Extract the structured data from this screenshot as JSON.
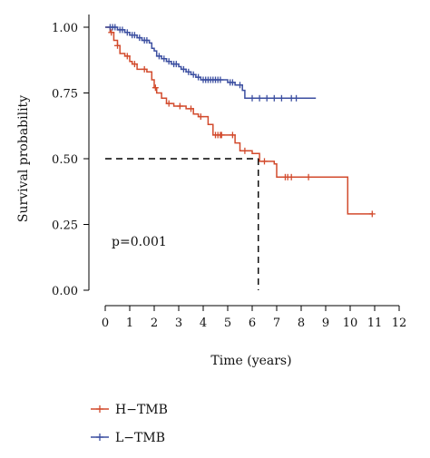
{
  "chart_data": {
    "type": "line",
    "step": true,
    "xlabel": "Time (years)",
    "ylabel": "Survival probability",
    "xlim": [
      0,
      12
    ],
    "ylim": [
      0,
      1
    ],
    "xticks": [
      0,
      1,
      2,
      3,
      4,
      5,
      6,
      7,
      8,
      9,
      10,
      11,
      12
    ],
    "yticks": [
      "0.00",
      "0.25",
      "0.50",
      "0.75",
      "1.00"
    ],
    "grid": false,
    "legend_position": "bottom-left",
    "annotation": "p=0.001",
    "median_reference": {
      "y": 0.5,
      "x": 6.25
    },
    "series": [
      {
        "name": "H−TMB",
        "color": "#d24a2c",
        "steps": [
          [
            0,
            1.0
          ],
          [
            0.2,
            0.98
          ],
          [
            0.35,
            0.95
          ],
          [
            0.5,
            0.93
          ],
          [
            0.6,
            0.9
          ],
          [
            0.8,
            0.89
          ],
          [
            1.0,
            0.87
          ],
          [
            1.1,
            0.86
          ],
          [
            1.3,
            0.84
          ],
          [
            1.7,
            0.83
          ],
          [
            1.9,
            0.8
          ],
          [
            2.0,
            0.77
          ],
          [
            2.1,
            0.75
          ],
          [
            2.3,
            0.73
          ],
          [
            2.5,
            0.71
          ],
          [
            2.8,
            0.7
          ],
          [
            3.3,
            0.69
          ],
          [
            3.6,
            0.67
          ],
          [
            3.8,
            0.66
          ],
          [
            4.2,
            0.63
          ],
          [
            4.4,
            0.59
          ],
          [
            5.0,
            0.59
          ],
          [
            5.3,
            0.56
          ],
          [
            5.5,
            0.53
          ],
          [
            6.0,
            0.52
          ],
          [
            6.3,
            0.49
          ],
          [
            6.9,
            0.48
          ],
          [
            7.0,
            0.43
          ],
          [
            8.0,
            0.43
          ],
          [
            9.9,
            0.29
          ],
          [
            10.9,
            0.29
          ]
        ],
        "censor_x": [
          0.25,
          0.5,
          0.9,
          1.2,
          1.6,
          2.05,
          2.6,
          3.05,
          3.5,
          3.9,
          4.5,
          4.6,
          4.7,
          4.75,
          5.2,
          5.7,
          6.5,
          7.35,
          7.45,
          7.6,
          8.3,
          10.9
        ]
      },
      {
        "name": "L−TMB",
        "color": "#3b4ea0",
        "steps": [
          [
            0,
            1.0
          ],
          [
            0.5,
            0.99
          ],
          [
            0.8,
            0.98
          ],
          [
            1.0,
            0.97
          ],
          [
            1.3,
            0.96
          ],
          [
            1.5,
            0.95
          ],
          [
            1.8,
            0.94
          ],
          [
            1.9,
            0.92
          ],
          [
            2.0,
            0.91
          ],
          [
            2.1,
            0.89
          ],
          [
            2.3,
            0.88
          ],
          [
            2.5,
            0.87
          ],
          [
            2.7,
            0.86
          ],
          [
            3.0,
            0.85
          ],
          [
            3.1,
            0.84
          ],
          [
            3.3,
            0.83
          ],
          [
            3.5,
            0.82
          ],
          [
            3.7,
            0.81
          ],
          [
            3.9,
            0.8
          ],
          [
            5.0,
            0.79
          ],
          [
            5.3,
            0.78
          ],
          [
            5.6,
            0.76
          ],
          [
            5.7,
            0.73
          ],
          [
            8.6,
            0.73
          ]
        ],
        "censor_x": [
          0.2,
          0.3,
          0.4,
          0.6,
          0.7,
          0.9,
          1.1,
          1.2,
          1.4,
          1.6,
          1.7,
          2.2,
          2.4,
          2.6,
          2.8,
          2.9,
          3.2,
          3.4,
          3.6,
          3.8,
          4.0,
          4.1,
          4.2,
          4.3,
          4.4,
          4.5,
          4.6,
          4.7,
          5.1,
          5.2,
          5.5,
          6.0,
          6.3,
          6.6,
          6.9,
          7.2,
          7.6,
          7.8
        ]
      }
    ]
  }
}
